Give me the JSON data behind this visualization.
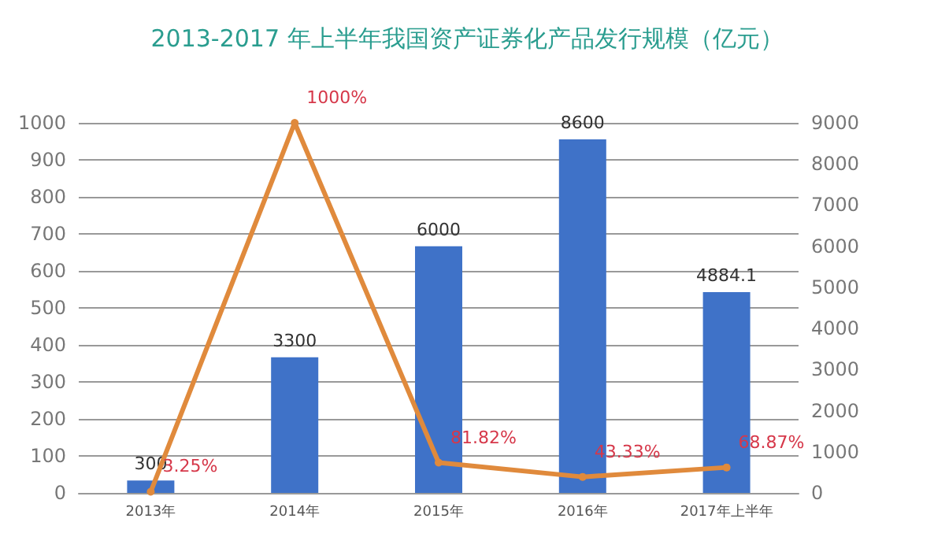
{
  "chart_data": {
    "type": "bar",
    "title": "2013-2017 年上半年我国资产证券化产品发行规模（亿元）",
    "categories": [
      "2013年",
      "2014年",
      "2015年",
      "2016年",
      "2017年上半年"
    ],
    "series": [
      {
        "axis": "y2",
        "color": "#3f72c8",
        "values": [
          300,
          3300,
          6000,
          8600,
          4884.1
        ],
        "value_labels": [
          "300",
          "3300",
          "6000",
          "8600",
          "4884.1"
        ]
      },
      {
        "type": "line",
        "axis": "y",
        "color": "#e08a3c",
        "marker": "circle",
        "values": [
          3.25,
          1000,
          81.82,
          43.33,
          68.87
        ],
        "value_labels": [
          "3.25%",
          "1000%",
          "81.82%",
          "43.33%",
          "68.87%"
        ]
      }
    ],
    "ylim": [
      0,
      1000
    ],
    "yticks": [
      0,
      100,
      200,
      300,
      400,
      500,
      600,
      700,
      800,
      900,
      1000
    ],
    "y2lim": [
      0,
      9000
    ],
    "y2ticks": [
      0,
      1000,
      2000,
      3000,
      4000,
      5000,
      6000,
      7000,
      8000,
      9000
    ],
    "grid": "y"
  }
}
